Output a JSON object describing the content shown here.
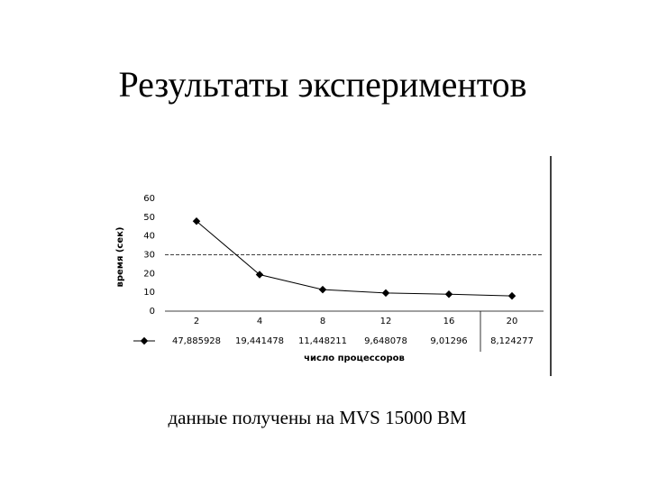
{
  "title": "Результаты экспериментов",
  "footnote": "данные получены на MVS 15000 ВМ",
  "chart_data": {
    "type": "line",
    "categories": [
      "2",
      "4",
      "8",
      "12",
      "16",
      "20"
    ],
    "values": [
      47.885928,
      19.441478,
      11.448211,
      9.648078,
      9.01296,
      8.124277
    ],
    "value_labels": [
      "47,885928",
      "19,441478",
      "11,448211",
      "9,648078",
      "9,01296",
      "8,124277"
    ],
    "color": "#000000",
    "ylim": [
      0,
      60
    ],
    "yticks": [
      0,
      10,
      20,
      30,
      40,
      50,
      60
    ],
    "reference_line": 30,
    "y_label": "время (сек)",
    "x_label": "число процессоров"
  }
}
